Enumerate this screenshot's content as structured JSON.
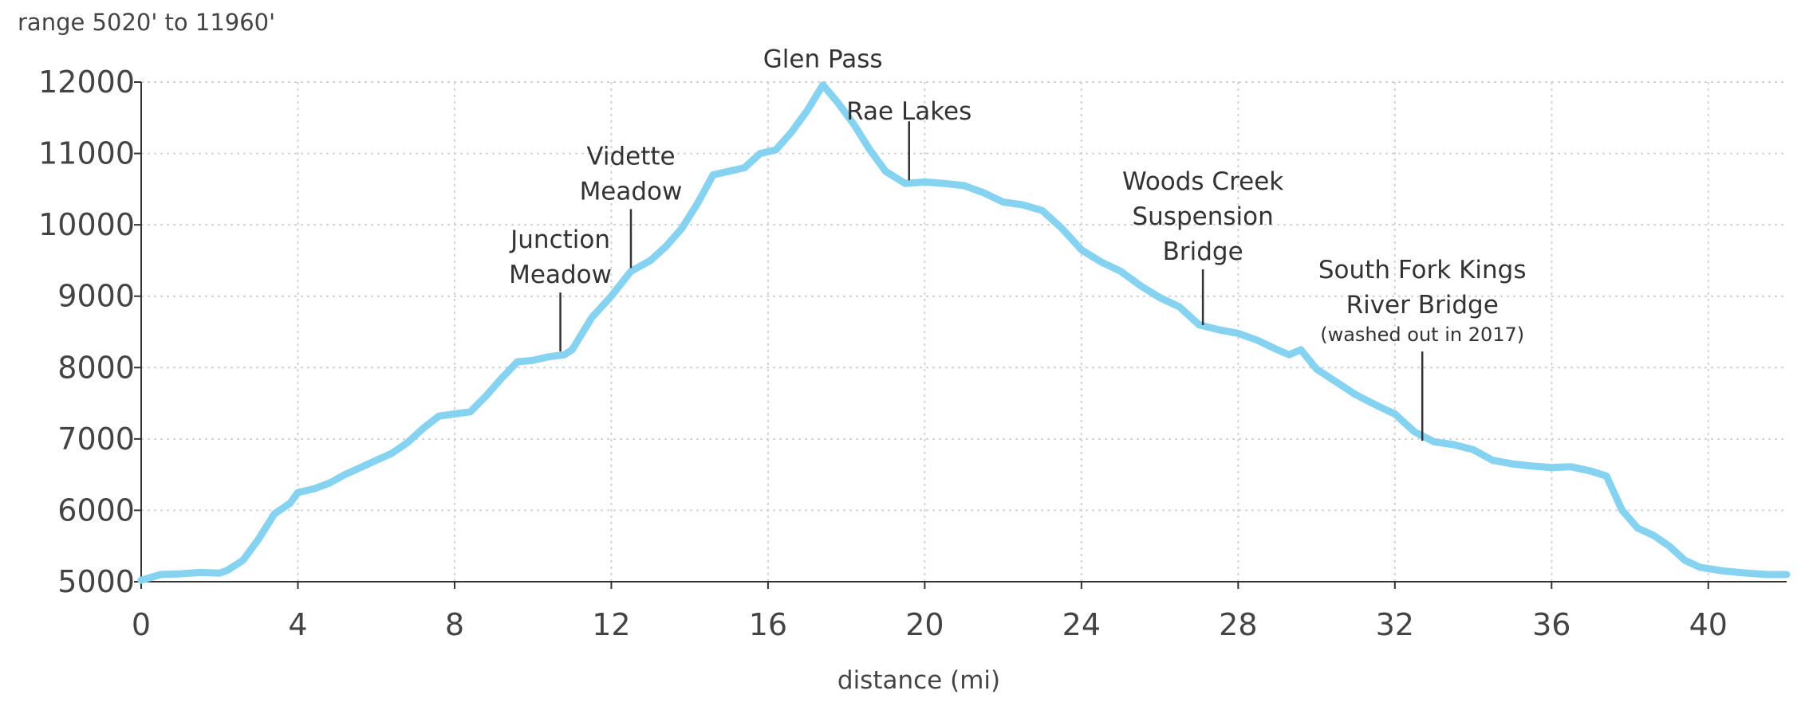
{
  "chart_data": {
    "type": "line",
    "range_label": "range 5020' to 11960'",
    "xlabel": "distance (mi)",
    "ylabel": "",
    "xlim": [
      0,
      42
    ],
    "ylim": [
      5000,
      12000
    ],
    "x_ticks": [
      0,
      4,
      8,
      12,
      16,
      20,
      24,
      28,
      32,
      36,
      40
    ],
    "y_ticks": [
      5000,
      6000,
      7000,
      8000,
      9000,
      10000,
      11000,
      12000
    ],
    "grid": true,
    "line_color": "#85d3f0",
    "series": [
      {
        "x": [
          0,
          0.5,
          1,
          1.5,
          2,
          2.2,
          2.6,
          3,
          3.4,
          3.8,
          4,
          4.4,
          4.8,
          5.2,
          5.6,
          6,
          6.4,
          6.8,
          7.2,
          7.6,
          8,
          8.4,
          8.8,
          9.2,
          9.6,
          10,
          10.4,
          10.8,
          11,
          11.5,
          12,
          12.5,
          13,
          13.4,
          13.8,
          14.2,
          14.6,
          15,
          15.4,
          15.8,
          16.2,
          16.6,
          17,
          17.4,
          17.8,
          18.2,
          18.6,
          19,
          19.5,
          20,
          20.5,
          21,
          21.5,
          22,
          22.5,
          23,
          23.5,
          24,
          24.5,
          25,
          25.5,
          26,
          26.5,
          27,
          27.5,
          28,
          28.5,
          29,
          29.3,
          29.6,
          30,
          30.5,
          31,
          31.5,
          32,
          32.5,
          33,
          33.5,
          34,
          34.5,
          35,
          35.5,
          36,
          36.5,
          37,
          37.4,
          37.8,
          38.2,
          38.6,
          39,
          39.4,
          39.8,
          40.4,
          41,
          41.5,
          42
        ],
        "y": [
          5020,
          5100,
          5110,
          5130,
          5120,
          5160,
          5300,
          5600,
          5950,
          6100,
          6250,
          6300,
          6380,
          6500,
          6600,
          6700,
          6800,
          6950,
          7150,
          7320,
          7350,
          7380,
          7600,
          7850,
          8080,
          8100,
          8150,
          8180,
          8250,
          8700,
          9000,
          9350,
          9500,
          9700,
          9950,
          10300,
          10700,
          10750,
          10800,
          11000,
          11050,
          11300,
          11600,
          11960,
          11700,
          11400,
          11050,
          10750,
          10580,
          10600,
          10580,
          10550,
          10450,
          10320,
          10280,
          10200,
          9950,
          9650,
          9480,
          9350,
          9150,
          8980,
          8850,
          8600,
          8530,
          8480,
          8380,
          8250,
          8180,
          8250,
          7980,
          7800,
          7620,
          7480,
          7350,
          7100,
          6960,
          6920,
          6850,
          6700,
          6650,
          6620,
          6600,
          6610,
          6550,
          6480,
          6000,
          5750,
          5650,
          5500,
          5300,
          5200,
          5150,
          5120,
          5100,
          5100
        ]
      }
    ],
    "annotations": [
      {
        "lines": [
          "Junction",
          "Meadow"
        ],
        "x": 10.7,
        "y": 8180
      },
      {
        "lines": [
          "Vidette",
          "Meadow"
        ],
        "x": 12.5,
        "y": 9350
      },
      {
        "lines": [
          "Glen Pass"
        ],
        "x": 17.4,
        "y": 11960
      },
      {
        "lines": [
          "Rae Lakes"
        ],
        "x": 19.6,
        "y": 10580
      },
      {
        "lines": [
          "Woods Creek",
          "Suspension",
          "Bridge"
        ],
        "x": 27.1,
        "y": 8550
      },
      {
        "lines": [
          "South Fork Kings",
          "River Bridge"
        ],
        "sub": "(washed out in 2017)",
        "x": 32.7,
        "y": 6930
      }
    ]
  }
}
